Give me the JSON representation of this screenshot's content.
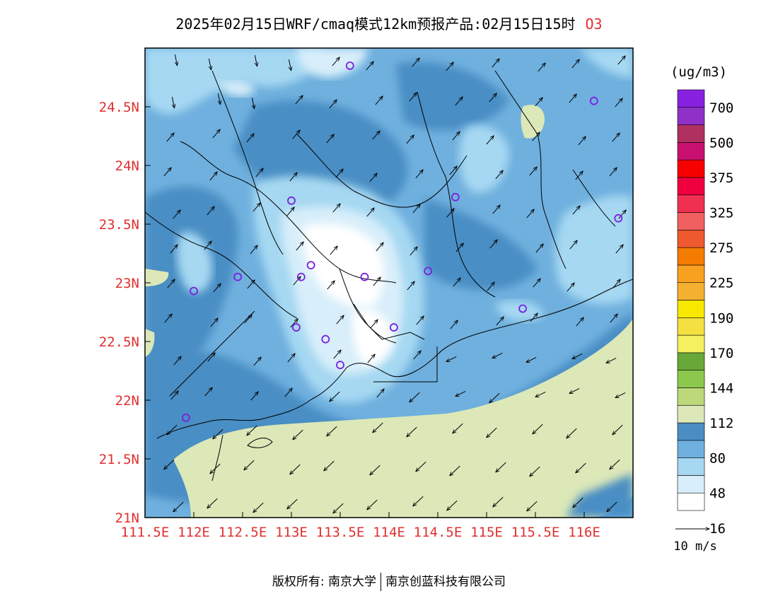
{
  "title": {
    "text": "2025年02月15日WRF/cmaq模式12km预报产品:02月15日15时",
    "species": "O3"
  },
  "map": {
    "lon_range": [
      111.5,
      116.5
    ],
    "lat_range": [
      21.0,
      25.0
    ],
    "x_ticks": [
      "111.5E",
      "112E",
      "112.5E",
      "113E",
      "113.5E",
      "114E",
      "114.5E",
      "115E",
      "115.5E",
      "116E"
    ],
    "y_ticks": [
      "21N",
      "21.5N",
      "22N",
      "22.5N",
      "23N",
      "23.5N",
      "24N",
      "24.5N"
    ],
    "stations": [
      {
        "lon": 113.6,
        "lat": 24.85
      },
      {
        "lon": 116.1,
        "lat": 24.55
      },
      {
        "lon": 113.0,
        "lat": 23.7
      },
      {
        "lon": 114.68,
        "lat": 23.73
      },
      {
        "lon": 116.35,
        "lat": 23.55
      },
      {
        "lon": 113.2,
        "lat": 23.15
      },
      {
        "lon": 113.1,
        "lat": 23.05
      },
      {
        "lon": 113.75,
        "lat": 23.05
      },
      {
        "lon": 114.4,
        "lat": 23.1
      },
      {
        "lon": 112.45,
        "lat": 23.05
      },
      {
        "lon": 112.0,
        "lat": 22.93
      },
      {
        "lon": 115.37,
        "lat": 22.78
      },
      {
        "lon": 113.05,
        "lat": 22.62
      },
      {
        "lon": 114.05,
        "lat": 22.62
      },
      {
        "lon": 113.35,
        "lat": 22.52
      },
      {
        "lon": 113.5,
        "lat": 22.3
      },
      {
        "lon": 111.92,
        "lat": 21.85
      }
    ],
    "footer_left": "版权所有: 南京大学",
    "footer_right": "南京创蓝科技有限公司"
  },
  "colorbar": {
    "unit": "(ug/m3)",
    "labels": [
      "700",
      "500",
      "375",
      "325",
      "275",
      "225",
      "190",
      "170",
      "144",
      "112",
      "80",
      "48",
      "16"
    ],
    "colors": [
      "#ffffff",
      "#d8eefa",
      "#a6d8f2",
      "#6fb0de",
      "#4a8ec4",
      "#dce8b8",
      "#bcd87a",
      "#8cc84e",
      "#68a838",
      "#f4f060",
      "#f4e040",
      "#f8e800",
      "#f4b030",
      "#f8a020",
      "#f47c00",
      "#f05a30",
      "#f06060",
      "#f03050",
      "#f00040",
      "#f80000",
      "#c81070",
      "#b03060",
      "#9030c8",
      "#8820e0"
    ]
  },
  "wind_legend": {
    "label": "10 m/s"
  }
}
